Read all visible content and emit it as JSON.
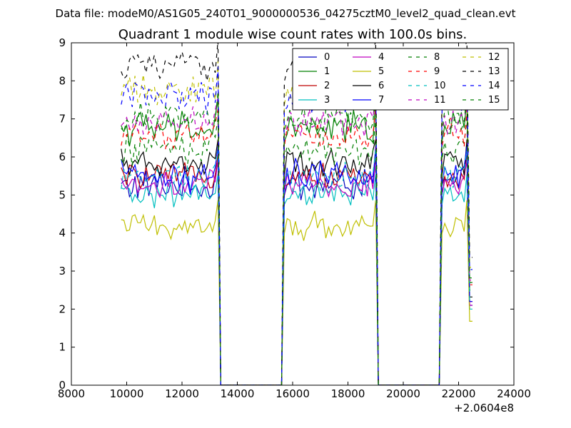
{
  "figure": {
    "suptitle": "Data file: modeM0/AS1G05_240T01_9000000536_04275cztM0_level2_quad_clean.evt",
    "title": "Quadrant 1 module wise count rates with 100.0s bins.",
    "x_offset_label": "+2.0604e8"
  },
  "chart_data": {
    "type": "line",
    "title": "Quadrant 1 module wise count rates with 100.0s bins.",
    "xlabel": "",
    "ylabel": "",
    "xlim": [
      8000,
      24000
    ],
    "ylim": [
      0,
      9
    ],
    "x_offset": 206040000,
    "x_ticks": [
      8000,
      10000,
      12000,
      14000,
      16000,
      18000,
      20000,
      22000,
      24000
    ],
    "y_ticks": [
      0,
      1,
      2,
      3,
      4,
      5,
      6,
      7,
      8,
      9
    ],
    "grid": false,
    "legend": {
      "position": "top-right",
      "columns": 4
    },
    "segments": [
      {
        "x_start": 9800,
        "x_end": 13500,
        "step": 100
      },
      {
        "x_start": 15600,
        "x_end": 19200,
        "step": 100
      },
      {
        "x_start": 21300,
        "x_end": 22500,
        "step": 100
      }
    ],
    "gaps_zero_level": 0,
    "series": [
      {
        "name": "0",
        "color": "#0000bf",
        "dashed": false,
        "level": 5.25,
        "spread": 0.35
      },
      {
        "name": "1",
        "color": "#007f00",
        "dashed": false,
        "level": 6.75,
        "spread": 0.35
      },
      {
        "name": "2",
        "color": "#bf0000",
        "dashed": false,
        "level": 5.5,
        "spread": 0.25
      },
      {
        "name": "3",
        "color": "#00bfbf",
        "dashed": false,
        "level": 5.0,
        "spread": 0.25
      },
      {
        "name": "4",
        "color": "#bf00bf",
        "dashed": false,
        "level": 5.25,
        "spread": 0.3
      },
      {
        "name": "5",
        "color": "#bfbf00",
        "dashed": false,
        "level": 4.2,
        "spread": 0.3
      },
      {
        "name": "6",
        "color": "#000000",
        "dashed": false,
        "level": 5.8,
        "spread": 0.3
      },
      {
        "name": "7",
        "color": "#0000ff",
        "dashed": false,
        "level": 5.5,
        "spread": 0.35
      },
      {
        "name": "8",
        "color": "#007f00",
        "dashed": true,
        "level": 6.25,
        "spread": 0.35
      },
      {
        "name": "9",
        "color": "#ff0000",
        "dashed": true,
        "level": 6.6,
        "spread": 0.3
      },
      {
        "name": "10",
        "color": "#00bfbf",
        "dashed": true,
        "level": 5.5,
        "spread": 0.3
      },
      {
        "name": "11",
        "color": "#bf00bf",
        "dashed": true,
        "level": 6.9,
        "spread": 0.3
      },
      {
        "name": "12",
        "color": "#bfbf00",
        "dashed": true,
        "level": 7.75,
        "spread": 0.35
      },
      {
        "name": "13",
        "color": "#000000",
        "dashed": true,
        "level": 8.4,
        "spread": 0.3
      },
      {
        "name": "14",
        "color": "#0000ff",
        "dashed": true,
        "level": 7.6,
        "spread": 0.35
      },
      {
        "name": "15",
        "color": "#007f00",
        "dashed": true,
        "level": 7.05,
        "spread": 0.3
      }
    ]
  }
}
